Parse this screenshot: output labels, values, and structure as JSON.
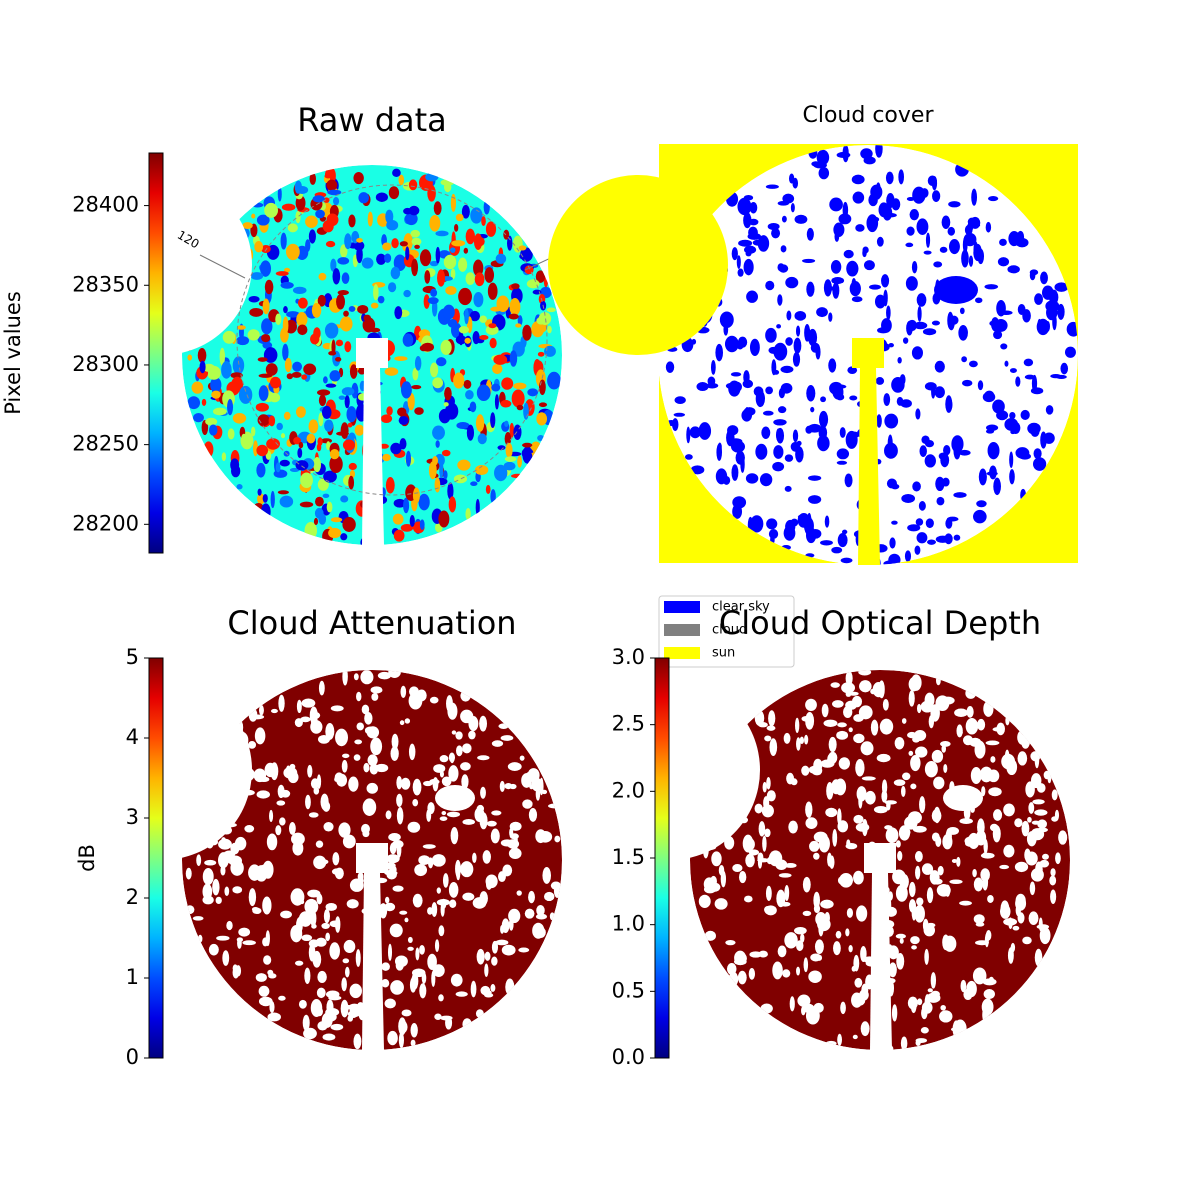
{
  "chart_data": [
    {
      "type": "image",
      "title": "Raw data",
      "colormap": "jet",
      "colorbar": {
        "label": "Pixel values",
        "lim": [
          28182,
          28433
        ],
        "ticks": [
          28200,
          28250,
          28300,
          28350,
          28400
        ]
      },
      "annotations": [
        "120"
      ]
    },
    {
      "type": "image",
      "title": "Cloud cover",
      "legend": {
        "corner": "lower left",
        "series": [
          {
            "name": "clear sky",
            "color": "#0000ff"
          },
          {
            "name": "cloud",
            "color": "#808080"
          },
          {
            "name": "sun",
            "color": "#ffff00"
          }
        ]
      }
    },
    {
      "type": "image",
      "title": "Cloud Attenuation",
      "colormap": "jet",
      "colorbar": {
        "label": "dB",
        "lim": [
          0,
          5
        ],
        "ticks": [
          0,
          1,
          2,
          3,
          4,
          5
        ]
      }
    },
    {
      "type": "image",
      "title": "Cloud Optical Depth",
      "colormap": "jet",
      "colorbar": {
        "lim": [
          0,
          3
        ],
        "ticks": [
          {
            "value": 0,
            "label": "0.0"
          },
          0.5,
          {
            "value": 1,
            "label": "1.0"
          },
          1.5,
          {
            "value": 2,
            "label": "2.0"
          },
          2.5,
          {
            "value": 3,
            "label": "3.0"
          }
        ]
      }
    }
  ]
}
